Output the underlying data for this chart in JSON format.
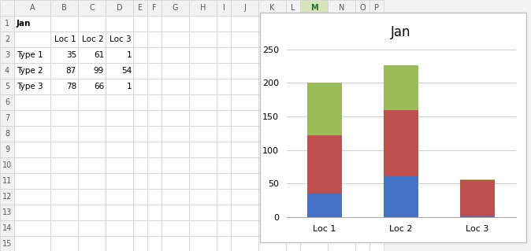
{
  "title": "Jan",
  "locations": [
    "Loc 1",
    "Loc 2",
    "Loc 3"
  ],
  "types": [
    "Type 1",
    "Type 2",
    "Type 3"
  ],
  "values": {
    "Type 1": [
      35,
      61,
      1
    ],
    "Type 2": [
      87,
      99,
      54
    ],
    "Type 3": [
      78,
      66,
      1
    ]
  },
  "colors": {
    "Type 1": "#4472C4",
    "Type 2": "#C0504D",
    "Type 3": "#9BBB59"
  },
  "ylim": [
    0,
    260
  ],
  "yticks": [
    0,
    50,
    100,
    150,
    200,
    250
  ],
  "col_headers": [
    "",
    "A",
    "B",
    "C",
    "D",
    "E",
    "F",
    "G",
    "H",
    "I",
    "J",
    "K",
    "L",
    "M",
    "N",
    "O",
    "P"
  ],
  "row_numbers": [
    "1",
    "2",
    "3",
    "4",
    "5",
    "6",
    "7",
    "8",
    "9",
    "10",
    "11",
    "12",
    "13",
    "14",
    "15"
  ],
  "cell_data": {
    "1A": "Jan",
    "2B": "Loc 1",
    "2C": "Loc 2",
    "2D": "Loc 3",
    "3A": "Type 1",
    "3B": "35",
    "3C": "61",
    "3D": "1",
    "4A": "Type 2",
    "4B": "87",
    "4C": "99",
    "4D": "54",
    "5A": "Type 3",
    "5B": "78",
    "5C": "66",
    "5D": "1"
  },
  "excel_bg": "#F2F2F2",
  "cell_bg": "#FFFFFF",
  "grid_color": "#D0D0D0",
  "header_bg": "#F2F2F2",
  "header_selected_bg": "#D6E4BC",
  "header_selected_col": "M",
  "chart_border": "#C0C0C0",
  "bar_width": 0.45,
  "background_color": "#FFFFFF",
  "title_fontsize": 12,
  "tick_fontsize": 8,
  "legend_fontsize": 8,
  "cell_fontsize": 7.5
}
